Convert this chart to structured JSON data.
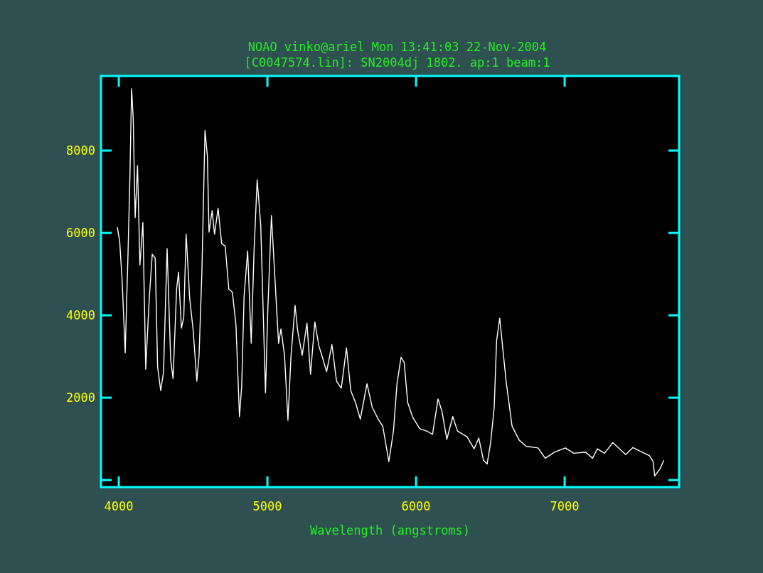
{
  "chart_data": {
    "type": "line",
    "title": "NOAO vinko@ariel Mon 13:41:03 22-Nov-2004",
    "subtitle": "[C0047574.lin]: SN2004dj 1802. ap:1 beam:1",
    "xlabel": "Wavelength (angstroms)",
    "xlim": [
      3880,
      7770
    ],
    "ylim": [
      -170,
      9810
    ],
    "xticks": [
      4000,
      5000,
      6000,
      7000
    ],
    "yticks": [
      {
        "value": 0,
        "label": null
      },
      2000,
      4000,
      6000,
      8000
    ],
    "grid": false,
    "series": [
      {
        "color": "#ffffff",
        "x": [
          3990,
          4006,
          4022,
          4043,
          4062,
          4075,
          4086,
          4097,
          4110,
          4126,
          4142,
          4162,
          4181,
          4205,
          4225,
          4245,
          4261,
          4282,
          4301,
          4325,
          4349,
          4365,
          4389,
          4402,
          4421,
          4437,
          4453,
          4477,
          4501,
          4525,
          4540,
          4559,
          4580,
          4596,
          4607,
          4628,
          4644,
          4668,
          4692,
          4716,
          4740,
          4764,
          4788,
          4812,
          4827,
          4843,
          4867,
          4891,
          4910,
          4931,
          4955,
          4987,
          5003,
          5027,
          5051,
          5075,
          5091,
          5115,
          5138,
          5159,
          5186,
          5202,
          5210,
          5234,
          5266,
          5290,
          5319,
          5346,
          5370,
          5398,
          5434,
          5465,
          5497,
          5532,
          5561,
          5593,
          5625,
          5670,
          5705,
          5745,
          5776,
          5817,
          5848,
          5872,
          5899,
          5920,
          5944,
          5976,
          6024,
          6072,
          6111,
          6148,
          6175,
          6207,
          6247,
          6279,
          6343,
          6391,
          6422,
          6454,
          6478,
          6502,
          6526,
          6542,
          6563,
          6582,
          6606,
          6646,
          6694,
          6741,
          6821,
          6869,
          6933,
          7005,
          7061,
          7141,
          7188,
          7220,
          7268,
          7324,
          7411,
          7459,
          7571,
          7595,
          7606,
          7643,
          7667
        ],
        "values": [
          6140,
          5790,
          4870,
          3090,
          5500,
          7400,
          9500,
          8780,
          6370,
          7630,
          5220,
          6250,
          2690,
          4410,
          5480,
          5390,
          2750,
          2170,
          2630,
          5620,
          2920,
          2460,
          4640,
          5050,
          3690,
          3950,
          5970,
          4410,
          3610,
          2400,
          3030,
          5050,
          8490,
          7860,
          6020,
          6540,
          5970,
          6600,
          5740,
          5680,
          4640,
          4560,
          3780,
          1540,
          2290,
          4470,
          5560,
          3320,
          5560,
          7290,
          6190,
          2120,
          4180,
          6420,
          4870,
          3320,
          3670,
          3030,
          1450,
          3030,
          4240,
          3670,
          3490,
          3030,
          3810,
          2570,
          3840,
          3260,
          2980,
          2630,
          3290,
          2400,
          2230,
          3210,
          2170,
          1880,
          1480,
          2340,
          1770,
          1480,
          1310,
          450,
          1190,
          2340,
          2980,
          2860,
          1880,
          1540,
          1250,
          1190,
          1110,
          1970,
          1660,
          990,
          1540,
          1190,
          1050,
          760,
          1020,
          480,
          390,
          910,
          1770,
          3380,
          3930,
          3260,
          2400,
          1310,
          970,
          820,
          780,
          530,
          680,
          780,
          650,
          680,
          530,
          760,
          650,
          910,
          620,
          790,
          590,
          450,
          100,
          280,
          480
        ]
      }
    ]
  }
}
